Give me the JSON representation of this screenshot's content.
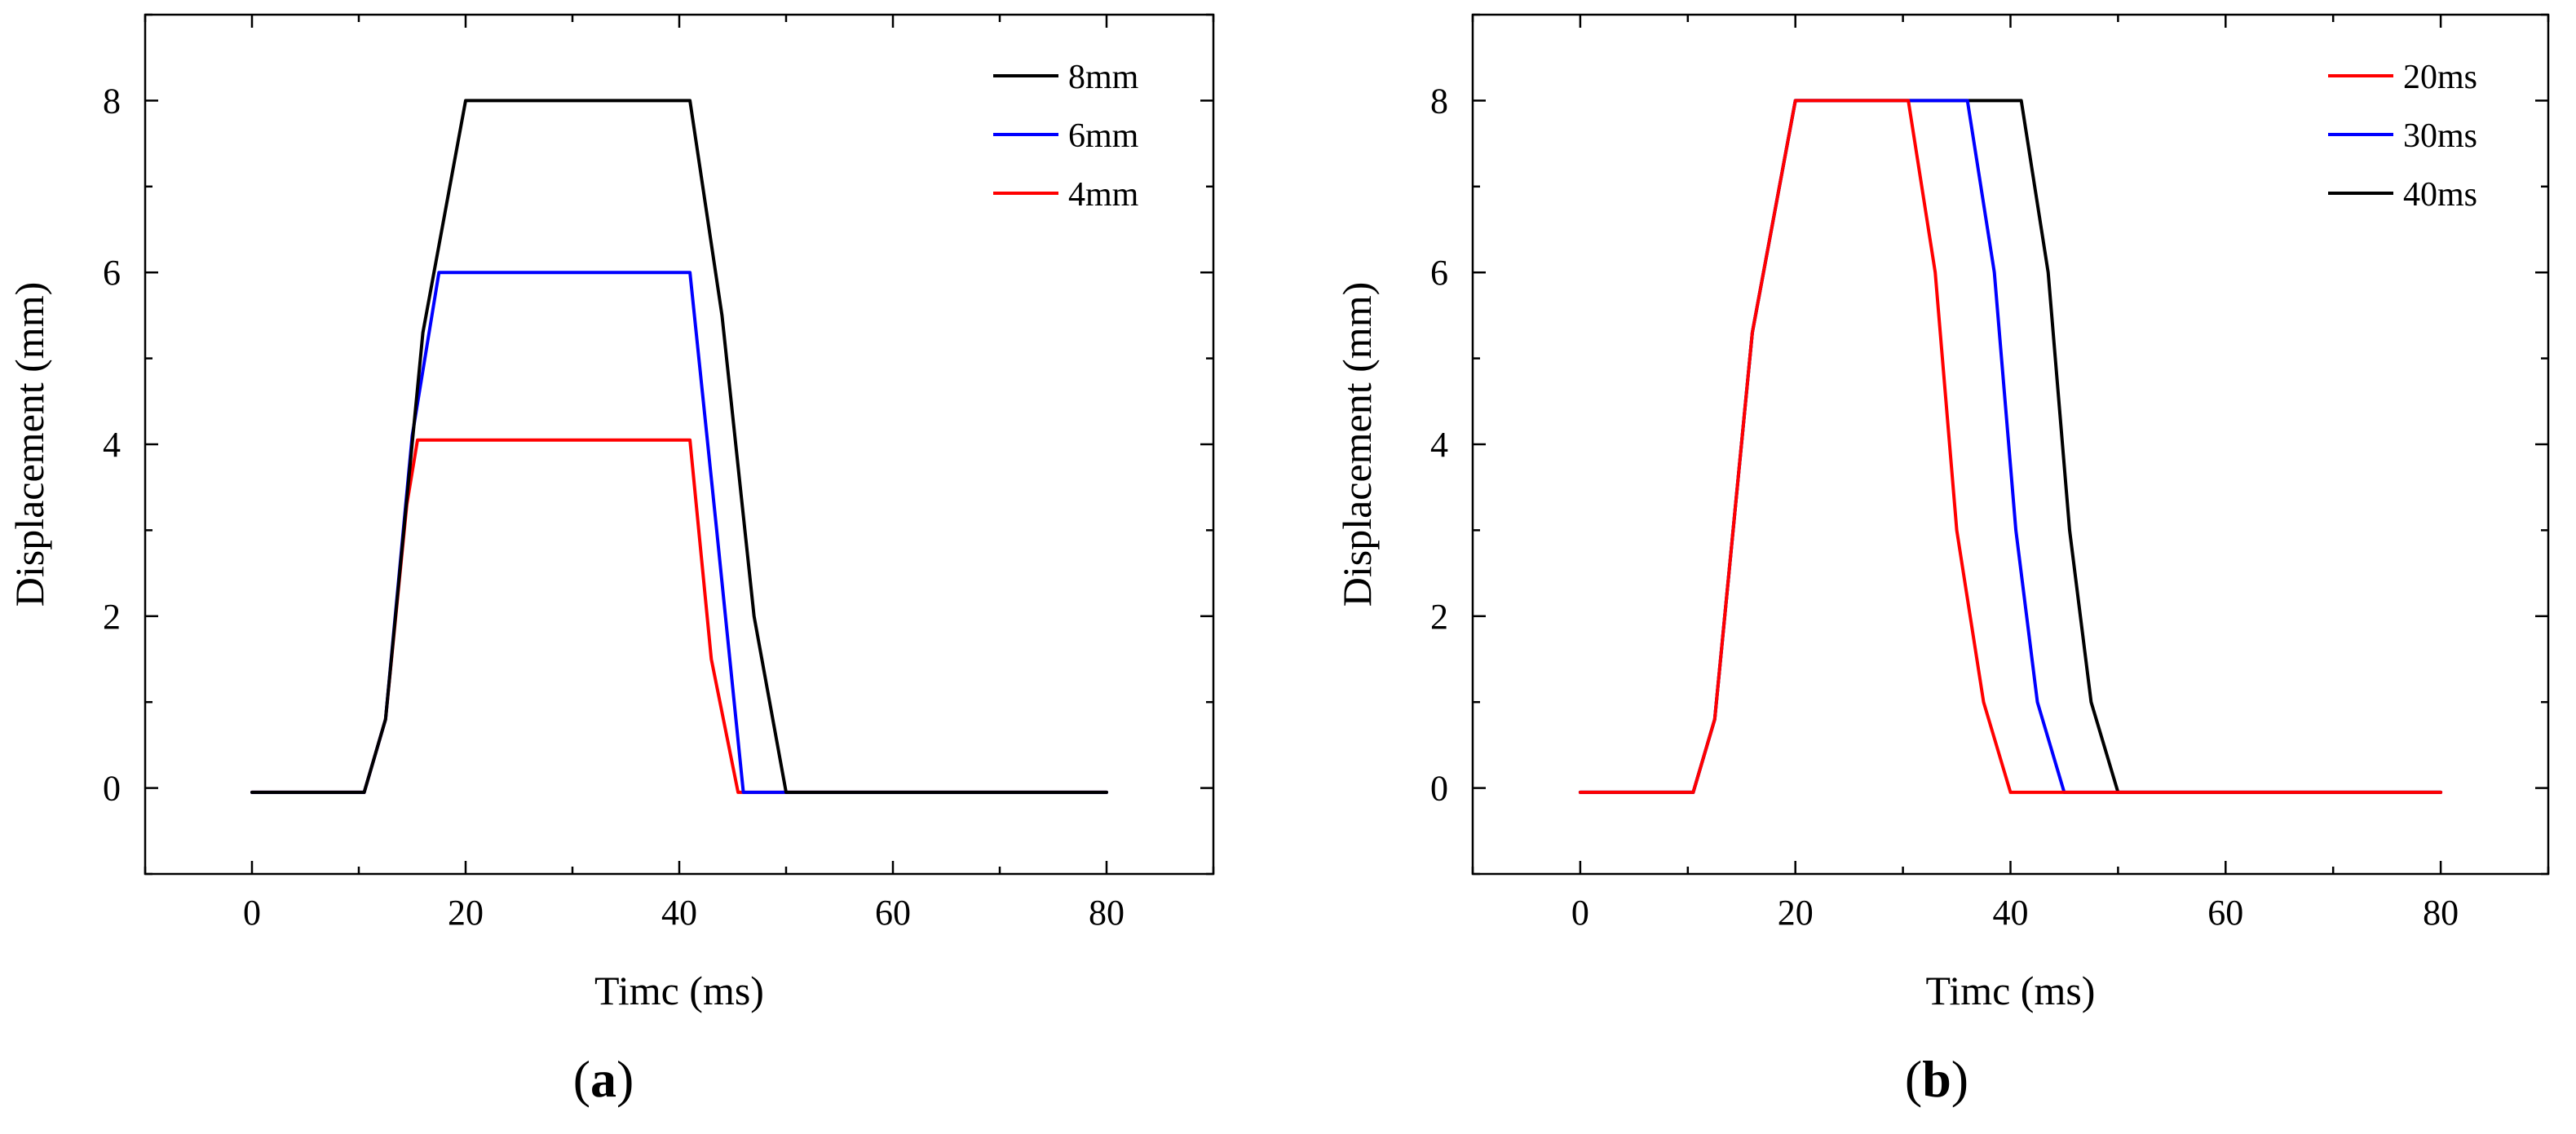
{
  "figure": {
    "panels": [
      {
        "label_open": "(",
        "label_letter": "a",
        "label_close": ")"
      },
      {
        "label_open": "(",
        "label_letter": "b",
        "label_close": ")"
      }
    ]
  },
  "chart_data": [
    {
      "type": "line",
      "panel": "a",
      "title": "",
      "xlabel": "Timc (ms)",
      "ylabel": "Displacement (mm)",
      "xlim": [
        -10,
        90
      ],
      "ylim": [
        -1,
        9
      ],
      "xticks": [
        0,
        20,
        40,
        60,
        80
      ],
      "yticks": [
        0,
        2,
        4,
        6,
        8
      ],
      "grid": false,
      "legend_position": "top-right",
      "series": [
        {
          "name": "8mm",
          "color": "#000000",
          "x": [
            0,
            10.5,
            12.5,
            16,
            20,
            41,
            44,
            47,
            50,
            80
          ],
          "y": [
            -0.05,
            -0.05,
            0.8,
            5.3,
            8.0,
            8.0,
            5.5,
            2.0,
            -0.05,
            -0.05
          ]
        },
        {
          "name": "6mm",
          "color": "#0000ff",
          "x": [
            0,
            10.5,
            12.5,
            15,
            17.5,
            41,
            43.5,
            46,
            80
          ],
          "y": [
            -0.05,
            -0.05,
            0.8,
            4.1,
            6.0,
            6.0,
            3.0,
            -0.05,
            -0.05
          ]
        },
        {
          "name": "4mm",
          "color": "#ff0000",
          "x": [
            0,
            10.5,
            12.5,
            14.5,
            15.5,
            41,
            43,
            45.5,
            80
          ],
          "y": [
            -0.05,
            -0.05,
            0.8,
            3.3,
            4.05,
            4.05,
            1.5,
            -0.05,
            -0.05
          ]
        }
      ]
    },
    {
      "type": "line",
      "panel": "b",
      "title": "",
      "xlabel": "Timc (ms)",
      "ylabel": "Displacement (mm)",
      "xlim": [
        -10,
        90
      ],
      "ylim": [
        -1,
        9
      ],
      "xticks": [
        0,
        20,
        40,
        60,
        80
      ],
      "yticks": [
        0,
        2,
        4,
        6,
        8
      ],
      "grid": false,
      "legend_position": "top-right",
      "series": [
        {
          "name": "20ms",
          "color": "#ff0000",
          "x": [
            0,
            10.5,
            12.5,
            16,
            20,
            30.5,
            33,
            35,
            37.5,
            40,
            80
          ],
          "y": [
            -0.05,
            -0.05,
            0.8,
            5.3,
            8.0,
            8.0,
            6.0,
            3.0,
            1.0,
            -0.05,
            -0.05
          ]
        },
        {
          "name": "30ms",
          "color": "#0000ff",
          "x": [
            0,
            10.5,
            12.5,
            16,
            20,
            36,
            38.5,
            40.5,
            42.5,
            45,
            80
          ],
          "y": [
            -0.05,
            -0.05,
            0.8,
            5.3,
            8.0,
            8.0,
            6.0,
            3.0,
            1.0,
            -0.05,
            -0.05
          ]
        },
        {
          "name": "40ms",
          "color": "#000000",
          "x": [
            0,
            10.5,
            12.5,
            16,
            20,
            41,
            43.5,
            45.5,
            47.5,
            50,
            80
          ],
          "y": [
            -0.05,
            -0.05,
            0.8,
            5.3,
            8.0,
            8.0,
            6.0,
            3.0,
            1.0,
            -0.05,
            -0.05
          ]
        }
      ]
    }
  ]
}
